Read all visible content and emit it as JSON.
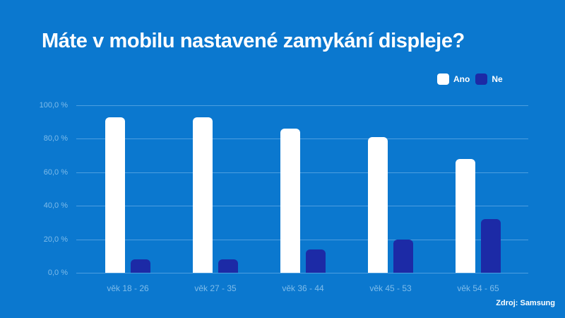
{
  "title": "Máte v mobilu nastavené zamykání displeje?",
  "source": "Zdroj: Samsung",
  "legend": [
    {
      "label": "Ano",
      "color": "#ffffff"
    },
    {
      "label": "Ne",
      "color": "#1c2aa6"
    }
  ],
  "colors": {
    "background": "#0b78cf",
    "ano": "#ffffff",
    "ne": "#1c2aa6",
    "gridline": "#4d9ee0",
    "tick_text": "#7fbcea"
  },
  "y_ticks": [
    "100,0 %",
    "80,0 %",
    "60,0 %",
    "40,0 %",
    "20,0 %",
    "0,0 %"
  ],
  "chart_data": {
    "type": "bar",
    "title": "Máte v mobilu nastavené zamykání displeje?",
    "xlabel": "",
    "ylabel": "",
    "ylim": [
      0,
      100
    ],
    "y_ticks": [
      0,
      20,
      40,
      60,
      80,
      100
    ],
    "y_tick_labels": [
      "0,0 %",
      "20,0 %",
      "40,0 %",
      "60,0 %",
      "80,0 %",
      "100,0 %"
    ],
    "grid": true,
    "legend_position": "top-right",
    "categories": [
      "věk 18 - 26",
      "věk 27 - 35",
      "věk 36 - 44",
      "věk 45 - 53",
      "věk 54 - 65"
    ],
    "series": [
      {
        "name": "Ano",
        "values": [
          93,
          93,
          86,
          81,
          68
        ]
      },
      {
        "name": "Ne",
        "values": [
          8,
          8,
          14,
          20,
          32
        ]
      }
    ],
    "annotations": [
      "Zdroj: Samsung"
    ]
  }
}
